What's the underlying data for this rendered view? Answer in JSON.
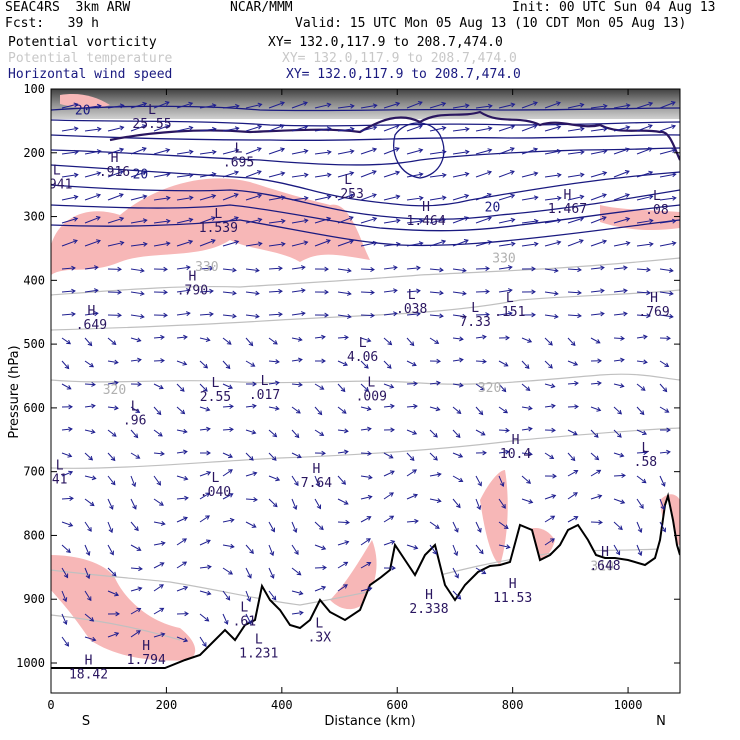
{
  "header": {
    "left_line1": "SEAC4RS  3km ARW",
    "center_line1": "NCAR/MMM",
    "right_line1": "Init: 00 UTC Sun 04 Aug 13",
    "left_line2": "Fcst:   39 h",
    "right_line2": "Valid: 15 UTC Mon 05 Aug 13 (10 CDT Mon 05 Aug 13)",
    "fields": [
      {
        "label": "Potential vorticity",
        "xy": "XY= 132.0,117.9 to 208.7,474.0",
        "color": "#000000"
      },
      {
        "label": "Potential temperature",
        "xy": "XY= 132.0,117.9 to 208.7,474.0",
        "color": "#c8c8c8"
      },
      {
        "label": "Horizontal wind speed",
        "xy": "XY= 132.0,117.9 to 208.7,474.0",
        "color": "#1a1a80"
      }
    ]
  },
  "chart_data": {
    "type": "cross-section",
    "xlabel": "Distance (km)",
    "ylabel": "Pressure (hPa)",
    "xlim": [
      0,
      1090
    ],
    "ylim": [
      1050,
      100
    ],
    "x_ticks": [
      0,
      200,
      400,
      600,
      800,
      1000
    ],
    "y_ticks": [
      100,
      200,
      300,
      400,
      500,
      600,
      700,
      800,
      900,
      1000
    ],
    "x_end_labels": {
      "left": "S",
      "right": "N"
    },
    "colors": {
      "pv_fill": "#f7b7b7",
      "wind_contour": "#1a1a80",
      "theta": "#c0c0c0",
      "vector": "#1f1f90",
      "terrain": "#000000"
    },
    "theta_labels": [
      {
        "text": "330",
        "x": 270,
        "p": 385
      },
      {
        "text": "330",
        "x": 785,
        "p": 372
      },
      {
        "text": "320",
        "x": 110,
        "p": 578
      },
      {
        "text": "320",
        "x": 760,
        "p": 575
      },
      {
        "text": "310",
        "x": 955,
        "p": 855
      }
    ],
    "wind_labels": [
      {
        "text": "20",
        "x": 55,
        "p": 140
      },
      {
        "text": "20",
        "x": 155,
        "p": 240
      },
      {
        "text": "20",
        "x": 765,
        "p": 292
      }
    ],
    "highs_lows": [
      {
        "type": "L",
        "value": "25.55",
        "x": 175,
        "p": 155
      },
      {
        "type": "L",
        "value": ".941",
        "x": 10,
        "p": 250
      },
      {
        "type": "H",
        "value": ".916",
        "x": 110,
        "p": 230
      },
      {
        "type": "L",
        "value": ".695",
        "x": 325,
        "p": 215
      },
      {
        "type": "L",
        "value": "1.539",
        "x": 290,
        "p": 318
      },
      {
        "type": "L",
        "value": ".253",
        "x": 515,
        "p": 265
      },
      {
        "type": "H",
        "value": "1.464",
        "x": 650,
        "p": 307
      },
      {
        "type": "H",
        "value": "1.467",
        "x": 895,
        "p": 288
      },
      {
        "type": "L",
        "value": ".08",
        "x": 1050,
        "p": 290
      },
      {
        "type": "H",
        "value": ".790",
        "x": 245,
        "p": 416
      },
      {
        "type": "H",
        "value": ".649",
        "x": 70,
        "p": 470
      },
      {
        "type": "L",
        "value": ".038",
        "x": 625,
        "p": 445
      },
      {
        "type": "L",
        "value": "7.33",
        "x": 735,
        "p": 465
      },
      {
        "type": "L",
        "value": ".151",
        "x": 795,
        "p": 450
      },
      {
        "type": "H",
        "value": ".769",
        "x": 1045,
        "p": 450
      },
      {
        "type": "L",
        "value": "4.06",
        "x": 540,
        "p": 520
      },
      {
        "type": "L",
        "value": "2.55",
        "x": 285,
        "p": 583
      },
      {
        "type": "L",
        "value": ".017",
        "x": 370,
        "p": 580
      },
      {
        "type": "L",
        "value": ".009",
        "x": 555,
        "p": 582
      },
      {
        "type": "L",
        "value": ".96",
        "x": 145,
        "p": 620
      },
      {
        "type": "H",
        "value": "10.4",
        "x": 805,
        "p": 672
      },
      {
        "type": "L",
        "value": ".58",
        "x": 1030,
        "p": 685
      },
      {
        "type": "L",
        "value": "41",
        "x": 15,
        "p": 712
      },
      {
        "type": "L",
        "value": ".040",
        "x": 285,
        "p": 732
      },
      {
        "type": "H",
        "value": "7.64",
        "x": 460,
        "p": 718
      },
      {
        "type": "H",
        "value": ".648",
        "x": 960,
        "p": 848
      },
      {
        "type": "H",
        "value": "11.53",
        "x": 800,
        "p": 898
      },
      {
        "type": "H",
        "value": "2.338",
        "x": 655,
        "p": 915
      },
      {
        "type": "L",
        "value": ".61",
        "x": 335,
        "p": 935
      },
      {
        "type": "L",
        "value": "1.231",
        "x": 360,
        "p": 985
      },
      {
        "type": "L",
        "value": ".3X",
        "x": 465,
        "p": 960
      },
      {
        "type": "H",
        "value": "1.794",
        "x": 165,
        "p": 995
      },
      {
        "type": "H",
        "value": "18.42",
        "x": 65,
        "p": 1018
      }
    ]
  }
}
